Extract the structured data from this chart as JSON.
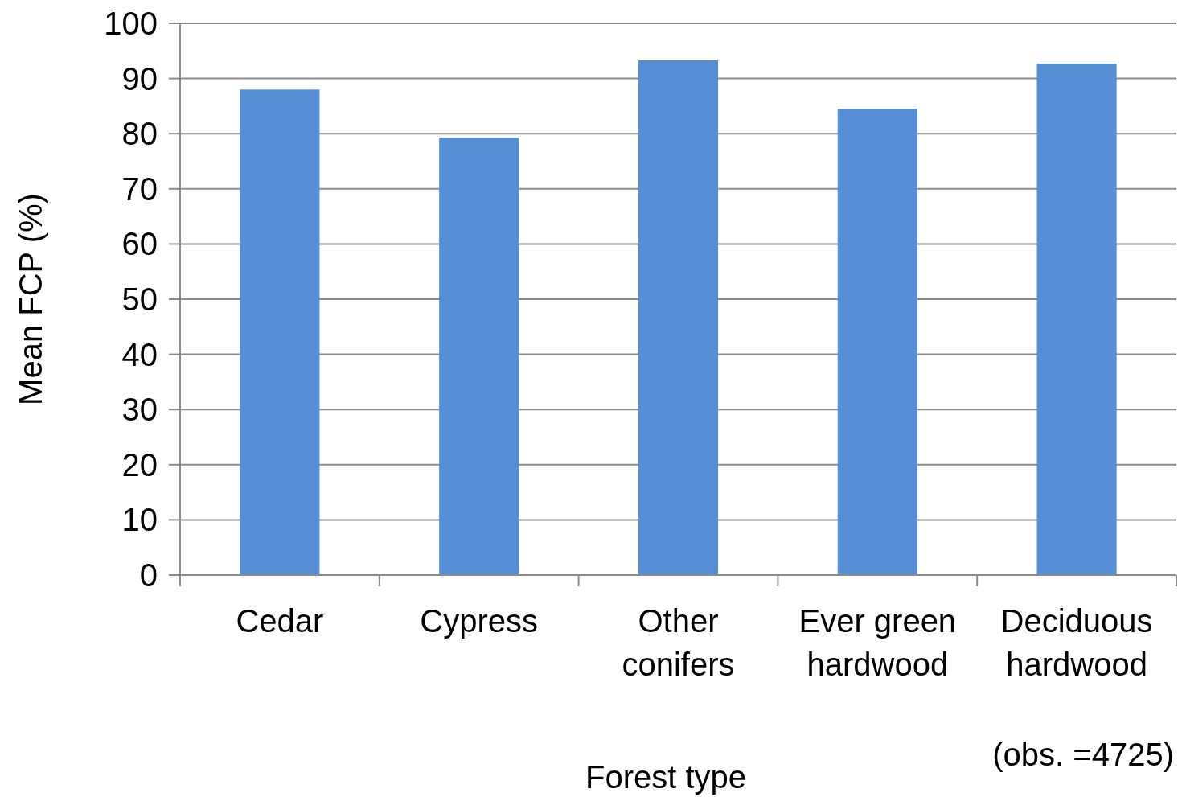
{
  "chart_data": {
    "type": "bar",
    "xlabel": "Forest type",
    "ylabel": "Mean FCP (%)",
    "categories": [
      "Cedar",
      "Cypress",
      "Other conifers",
      "Ever green hardwood",
      "Deciduous hardwood"
    ],
    "values": [
      88,
      79.3,
      93.3,
      84.5,
      92.7
    ],
    "color": "#558ed5",
    "ylim": [
      0,
      100
    ],
    "yticks": [
      0,
      10,
      20,
      30,
      40,
      50,
      60,
      70,
      80,
      90,
      100
    ],
    "grid": "y",
    "annotations": [
      "(obs. =4725)"
    ]
  }
}
